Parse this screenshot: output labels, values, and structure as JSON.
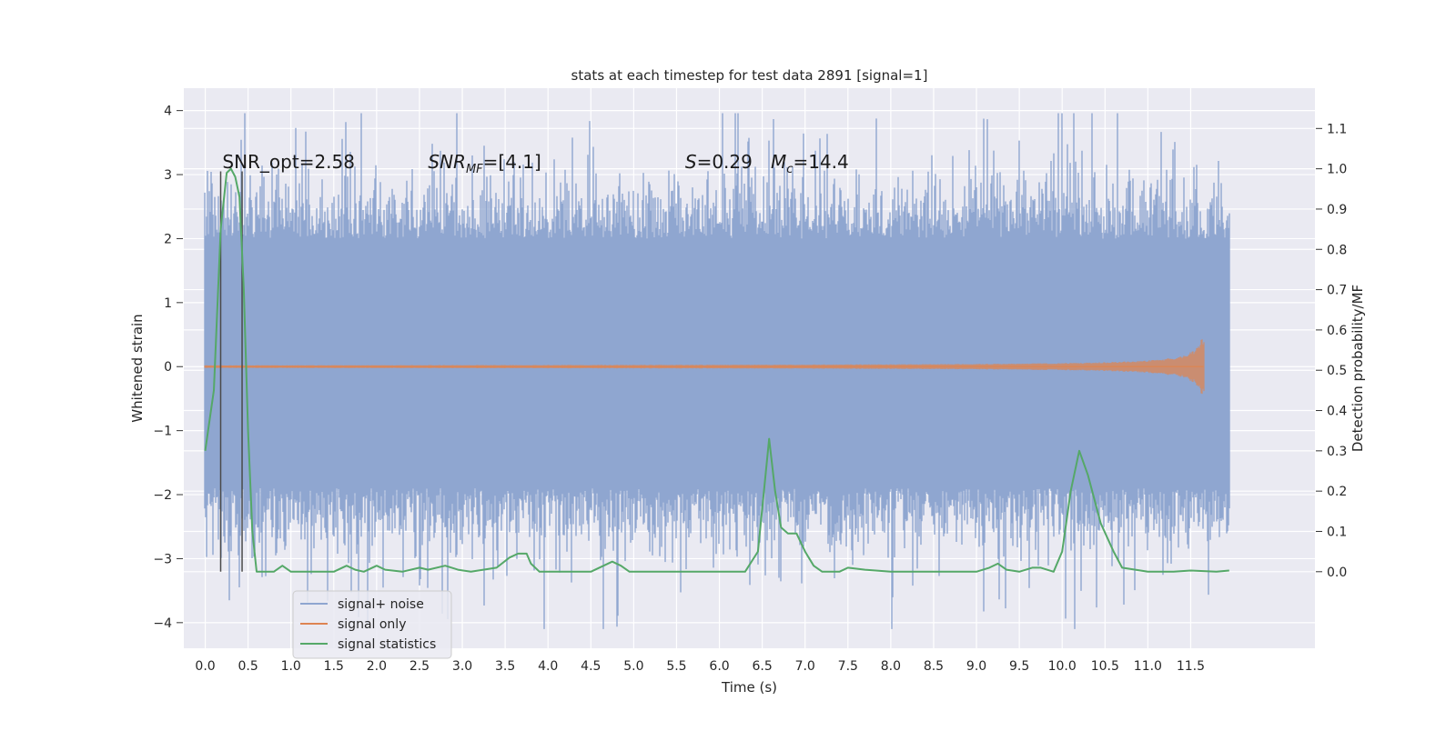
{
  "chart_data": {
    "type": "line",
    "title": "stats at each timestep for test data 2891 [signal=1]",
    "xlabel": "Time (s)",
    "ylabel": "Whitened strain",
    "y2label": "Detection probability/MF",
    "xlim": [
      -0.25,
      12.95
    ],
    "ylim": [
      -4.4,
      4.35
    ],
    "y2lim": [
      -0.19,
      1.2
    ],
    "x_ticks": [
      "0.0",
      "0.5",
      "1.0",
      "1.5",
      "2.0",
      "2.5",
      "3.0",
      "3.5",
      "4.0",
      "4.5",
      "5.0",
      "5.5",
      "6.0",
      "6.5",
      "7.0",
      "7.5",
      "8.0",
      "8.5",
      "9.0",
      "9.5",
      "10.0",
      "10.5",
      "11.0",
      "11.5"
    ],
    "y_ticks": [
      "4",
      "3",
      "2",
      "1",
      "0",
      "−1",
      "−2",
      "−3",
      "−4"
    ],
    "y2_ticks": [
      "1.1",
      "1.0",
      "0.9",
      "0.8",
      "0.7",
      "0.6",
      "0.5",
      "0.4",
      "0.3",
      "0.2",
      "0.1",
      "0.0"
    ],
    "grid": true,
    "legend_position": "lower-left",
    "series": [
      {
        "name": "signal+ noise",
        "color": "#8fa6d0",
        "axis": "left",
        "x_range": [
          0.0,
          11.95
        ],
        "envelope": {
          "typical_upper": 2.2,
          "typical_lower": -2.1,
          "max": 3.96,
          "min": -4.1
        }
      },
      {
        "name": "signal only",
        "color": "#dd8452",
        "axis": "left",
        "x_range": [
          0.0,
          11.65
        ],
        "peak_amplitude": 0.55,
        "peak_time": 11.65
      },
      {
        "name": "signal statistics",
        "color": "#55a868",
        "axis": "right",
        "x": [
          0.0,
          0.1,
          0.18,
          0.25,
          0.3,
          0.35,
          0.4,
          0.45,
          0.5,
          0.55,
          0.6,
          0.65,
          0.8,
          0.9,
          1.0,
          1.5,
          1.65,
          1.75,
          1.85,
          2.0,
          2.1,
          2.3,
          2.5,
          2.6,
          2.8,
          2.95,
          3.1,
          3.4,
          3.55,
          3.65,
          3.75,
          3.8,
          3.9,
          4.0,
          4.3,
          4.5,
          4.75,
          4.85,
          4.95,
          5.2,
          5.5,
          6.0,
          6.3,
          6.45,
          6.52,
          6.58,
          6.65,
          6.72,
          6.8,
          6.9,
          7.0,
          7.1,
          7.2,
          7.4,
          7.5,
          7.7,
          8.0,
          8.5,
          9.0,
          9.15,
          9.25,
          9.35,
          9.5,
          9.65,
          9.75,
          9.9,
          10.0,
          10.1,
          10.2,
          10.3,
          10.45,
          10.6,
          10.7,
          11.0,
          11.3,
          11.5,
          11.8,
          11.95
        ],
        "y": [
          0.3,
          0.45,
          0.85,
          0.99,
          1.0,
          0.98,
          0.93,
          0.7,
          0.35,
          0.1,
          0.0,
          0.0,
          0.0,
          0.015,
          0.0,
          0.0,
          0.015,
          0.005,
          0.0,
          0.015,
          0.005,
          0.0,
          0.01,
          0.005,
          0.015,
          0.005,
          0.0,
          0.01,
          0.035,
          0.045,
          0.045,
          0.02,
          0.0,
          0.0,
          0.0,
          0.0,
          0.025,
          0.015,
          0.0,
          0.0,
          0.0,
          0.0,
          0.0,
          0.05,
          0.2,
          0.33,
          0.2,
          0.11,
          0.095,
          0.095,
          0.05,
          0.015,
          0.0,
          0.0,
          0.01,
          0.005,
          0.0,
          0.0,
          0.0,
          0.01,
          0.02,
          0.005,
          0.0,
          0.01,
          0.01,
          0.0,
          0.05,
          0.2,
          0.3,
          0.24,
          0.12,
          0.05,
          0.01,
          0.0,
          0.0,
          0.003,
          0.0,
          0.003
        ]
      }
    ],
    "vertical_markers": [
      0.18,
      0.43
    ],
    "annotations": [
      {
        "text": "SNR_opt=2.58",
        "x": 0.2
      },
      {
        "text": "SNR_MF=[4.1]",
        "x": 2.6
      },
      {
        "text": "S=0.29",
        "x": 5.6
      },
      {
        "text": "M_c=14.4",
        "x": 6.6
      }
    ],
    "noise_seed": 2891
  }
}
